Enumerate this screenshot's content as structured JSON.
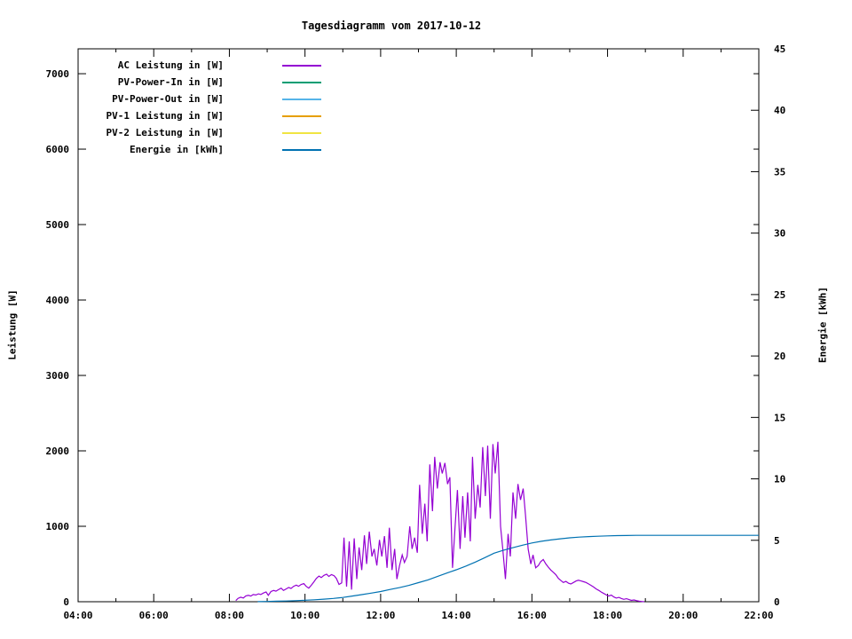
{
  "chart_data": {
    "type": "line",
    "title": "Tagesdiagramm vom 2017-10-12",
    "grid": false,
    "background": "#ffffff",
    "legend": {
      "position": "top-left-inside"
    },
    "x_axis": {
      "label": "",
      "unit": "time",
      "range_hours": [
        4,
        22
      ],
      "major_tick_every_hours": 2,
      "minor_tick_every_hours": 1,
      "tick_labels": [
        "04:00",
        "06:00",
        "08:00",
        "10:00",
        "12:00",
        "14:00",
        "16:00",
        "18:00",
        "20:00",
        "22:00"
      ]
    },
    "y1_axis": {
      "label": "Leistung [W]",
      "range": [
        0,
        7330
      ],
      "ticks": [
        0,
        1000,
        2000,
        3000,
        4000,
        5000,
        6000,
        7000
      ]
    },
    "y2_axis": {
      "label": "Energie [kWh]",
      "range": [
        0,
        45
      ],
      "ticks": [
        0,
        5,
        10,
        15,
        20,
        25,
        30,
        35,
        40,
        45
      ]
    },
    "series": [
      {
        "name": "AC Leistung in [W]",
        "color": "#9400d3",
        "axis": "y1",
        "points": [
          [
            8.17,
            15
          ],
          [
            8.23,
            45
          ],
          [
            8.3,
            60
          ],
          [
            8.37,
            50
          ],
          [
            8.43,
            75
          ],
          [
            8.5,
            85
          ],
          [
            8.57,
            75
          ],
          [
            8.63,
            95
          ],
          [
            8.7,
            90
          ],
          [
            8.77,
            105
          ],
          [
            8.83,
            95
          ],
          [
            8.9,
            115
          ],
          [
            8.97,
            130
          ],
          [
            9.03,
            85
          ],
          [
            9.1,
            135
          ],
          [
            9.17,
            150
          ],
          [
            9.23,
            140
          ],
          [
            9.3,
            160
          ],
          [
            9.37,
            180
          ],
          [
            9.43,
            150
          ],
          [
            9.5,
            170
          ],
          [
            9.57,
            190
          ],
          [
            9.63,
            175
          ],
          [
            9.7,
            205
          ],
          [
            9.77,
            220
          ],
          [
            9.83,
            205
          ],
          [
            9.9,
            230
          ],
          [
            9.97,
            240
          ],
          [
            10.03,
            205
          ],
          [
            10.1,
            180
          ],
          [
            10.17,
            220
          ],
          [
            10.23,
            260
          ],
          [
            10.3,
            310
          ],
          [
            10.37,
            340
          ],
          [
            10.43,
            320
          ],
          [
            10.5,
            350
          ],
          [
            10.57,
            365
          ],
          [
            10.63,
            335
          ],
          [
            10.7,
            360
          ],
          [
            10.77,
            345
          ],
          [
            10.83,
            310
          ],
          [
            10.9,
            230
          ],
          [
            10.97,
            250
          ],
          [
            11.03,
            850
          ],
          [
            11.1,
            200
          ],
          [
            11.17,
            800
          ],
          [
            11.23,
            160
          ],
          [
            11.3,
            840
          ],
          [
            11.37,
            300
          ],
          [
            11.43,
            720
          ],
          [
            11.5,
            420
          ],
          [
            11.57,
            880
          ],
          [
            11.63,
            500
          ],
          [
            11.7,
            930
          ],
          [
            11.77,
            600
          ],
          [
            11.83,
            700
          ],
          [
            11.9,
            480
          ],
          [
            11.97,
            820
          ],
          [
            12.03,
            600
          ],
          [
            12.1,
            870
          ],
          [
            12.17,
            450
          ],
          [
            12.23,
            980
          ],
          [
            12.3,
            420
          ],
          [
            12.37,
            700
          ],
          [
            12.43,
            300
          ],
          [
            12.5,
            480
          ],
          [
            12.57,
            620
          ],
          [
            12.63,
            520
          ],
          [
            12.7,
            600
          ],
          [
            12.77,
            1000
          ],
          [
            12.83,
            700
          ],
          [
            12.9,
            850
          ],
          [
            12.97,
            650
          ],
          [
            13.03,
            1550
          ],
          [
            13.1,
            900
          ],
          [
            13.17,
            1300
          ],
          [
            13.23,
            800
          ],
          [
            13.3,
            1820
          ],
          [
            13.37,
            1200
          ],
          [
            13.43,
            1920
          ],
          [
            13.5,
            1500
          ],
          [
            13.57,
            1850
          ],
          [
            13.63,
            1700
          ],
          [
            13.7,
            1840
          ],
          [
            13.77,
            1560
          ],
          [
            13.83,
            1650
          ],
          [
            13.9,
            450
          ],
          [
            13.97,
            1000
          ],
          [
            14.03,
            1480
          ],
          [
            14.1,
            700
          ],
          [
            14.17,
            1400
          ],
          [
            14.23,
            850
          ],
          [
            14.3,
            1450
          ],
          [
            14.37,
            800
          ],
          [
            14.43,
            1920
          ],
          [
            14.5,
            1100
          ],
          [
            14.57,
            1550
          ],
          [
            14.63,
            1250
          ],
          [
            14.7,
            2050
          ],
          [
            14.77,
            1400
          ],
          [
            14.83,
            2070
          ],
          [
            14.9,
            1100
          ],
          [
            14.97,
            2090
          ],
          [
            15.03,
            1700
          ],
          [
            15.1,
            2120
          ],
          [
            15.17,
            1000
          ],
          [
            15.23,
            700
          ],
          [
            15.3,
            300
          ],
          [
            15.37,
            900
          ],
          [
            15.43,
            600
          ],
          [
            15.5,
            1450
          ],
          [
            15.57,
            1100
          ],
          [
            15.63,
            1560
          ],
          [
            15.7,
            1350
          ],
          [
            15.77,
            1500
          ],
          [
            15.83,
            1150
          ],
          [
            15.9,
            700
          ],
          [
            15.97,
            500
          ],
          [
            16.03,
            620
          ],
          [
            16.1,
            450
          ],
          [
            16.17,
            480
          ],
          [
            16.23,
            530
          ],
          [
            16.3,
            560
          ],
          [
            16.37,
            500
          ],
          [
            16.43,
            460
          ],
          [
            16.5,
            420
          ],
          [
            16.57,
            390
          ],
          [
            16.63,
            360
          ],
          [
            16.7,
            310
          ],
          [
            16.77,
            280
          ],
          [
            16.83,
            255
          ],
          [
            16.9,
            270
          ],
          [
            16.97,
            245
          ],
          [
            17.03,
            235
          ],
          [
            17.1,
            255
          ],
          [
            17.17,
            275
          ],
          [
            17.23,
            285
          ],
          [
            17.3,
            275
          ],
          [
            17.37,
            265
          ],
          [
            17.43,
            255
          ],
          [
            17.5,
            235
          ],
          [
            17.57,
            215
          ],
          [
            17.63,
            195
          ],
          [
            17.7,
            170
          ],
          [
            17.77,
            150
          ],
          [
            17.83,
            130
          ],
          [
            17.9,
            110
          ],
          [
            17.97,
            90
          ],
          [
            18.03,
            75
          ],
          [
            18.1,
            88
          ],
          [
            18.17,
            62
          ],
          [
            18.23,
            48
          ],
          [
            18.3,
            58
          ],
          [
            18.37,
            42
          ],
          [
            18.43,
            32
          ],
          [
            18.5,
            40
          ],
          [
            18.57,
            28
          ],
          [
            18.63,
            18
          ],
          [
            18.7,
            24
          ],
          [
            18.77,
            14
          ],
          [
            18.83,
            8
          ],
          [
            18.9,
            4
          ],
          [
            18.97,
            0
          ]
        ]
      },
      {
        "name": "PV-Power-In in [W]",
        "color": "#009e73",
        "axis": "y1",
        "points": []
      },
      {
        "name": "PV-Power-Out in [W]",
        "color": "#56b4e9",
        "axis": "y1",
        "points": []
      },
      {
        "name": "PV-1 Leistung in [W]",
        "color": "#e69f00",
        "axis": "y1",
        "points": []
      },
      {
        "name": "PV-2 Leistung in [W]",
        "color": "#f0e442",
        "axis": "y1",
        "points": []
      },
      {
        "name": "Energie in [kWh]",
        "color": "#0072b2",
        "axis": "y2",
        "points": [
          [
            8.75,
            0.01
          ],
          [
            9.0,
            0.02
          ],
          [
            9.25,
            0.04
          ],
          [
            9.5,
            0.06
          ],
          [
            9.75,
            0.09
          ],
          [
            10.0,
            0.12
          ],
          [
            10.25,
            0.16
          ],
          [
            10.5,
            0.21
          ],
          [
            10.75,
            0.27
          ],
          [
            11.0,
            0.35
          ],
          [
            11.25,
            0.46
          ],
          [
            11.5,
            0.58
          ],
          [
            11.75,
            0.7
          ],
          [
            12.0,
            0.83
          ],
          [
            12.25,
            1.0
          ],
          [
            12.5,
            1.15
          ],
          [
            12.75,
            1.33
          ],
          [
            13.0,
            1.55
          ],
          [
            13.25,
            1.78
          ],
          [
            13.5,
            2.05
          ],
          [
            13.75,
            2.33
          ],
          [
            14.0,
            2.6
          ],
          [
            14.25,
            2.9
          ],
          [
            14.5,
            3.22
          ],
          [
            14.75,
            3.58
          ],
          [
            15.0,
            3.95
          ],
          [
            15.25,
            4.2
          ],
          [
            15.5,
            4.4
          ],
          [
            15.75,
            4.6
          ],
          [
            16.0,
            4.78
          ],
          [
            16.25,
            4.92
          ],
          [
            16.5,
            5.03
          ],
          [
            16.75,
            5.12
          ],
          [
            17.0,
            5.2
          ],
          [
            17.25,
            5.26
          ],
          [
            17.5,
            5.3
          ],
          [
            17.75,
            5.33
          ],
          [
            18.0,
            5.36
          ],
          [
            18.25,
            5.38
          ],
          [
            18.5,
            5.39
          ],
          [
            18.75,
            5.4
          ],
          [
            19.0,
            5.4
          ],
          [
            19.5,
            5.4
          ],
          [
            20.0,
            5.4
          ],
          [
            20.5,
            5.4
          ],
          [
            21.0,
            5.4
          ],
          [
            21.5,
            5.4
          ],
          [
            22.0,
            5.4
          ]
        ]
      }
    ]
  }
}
